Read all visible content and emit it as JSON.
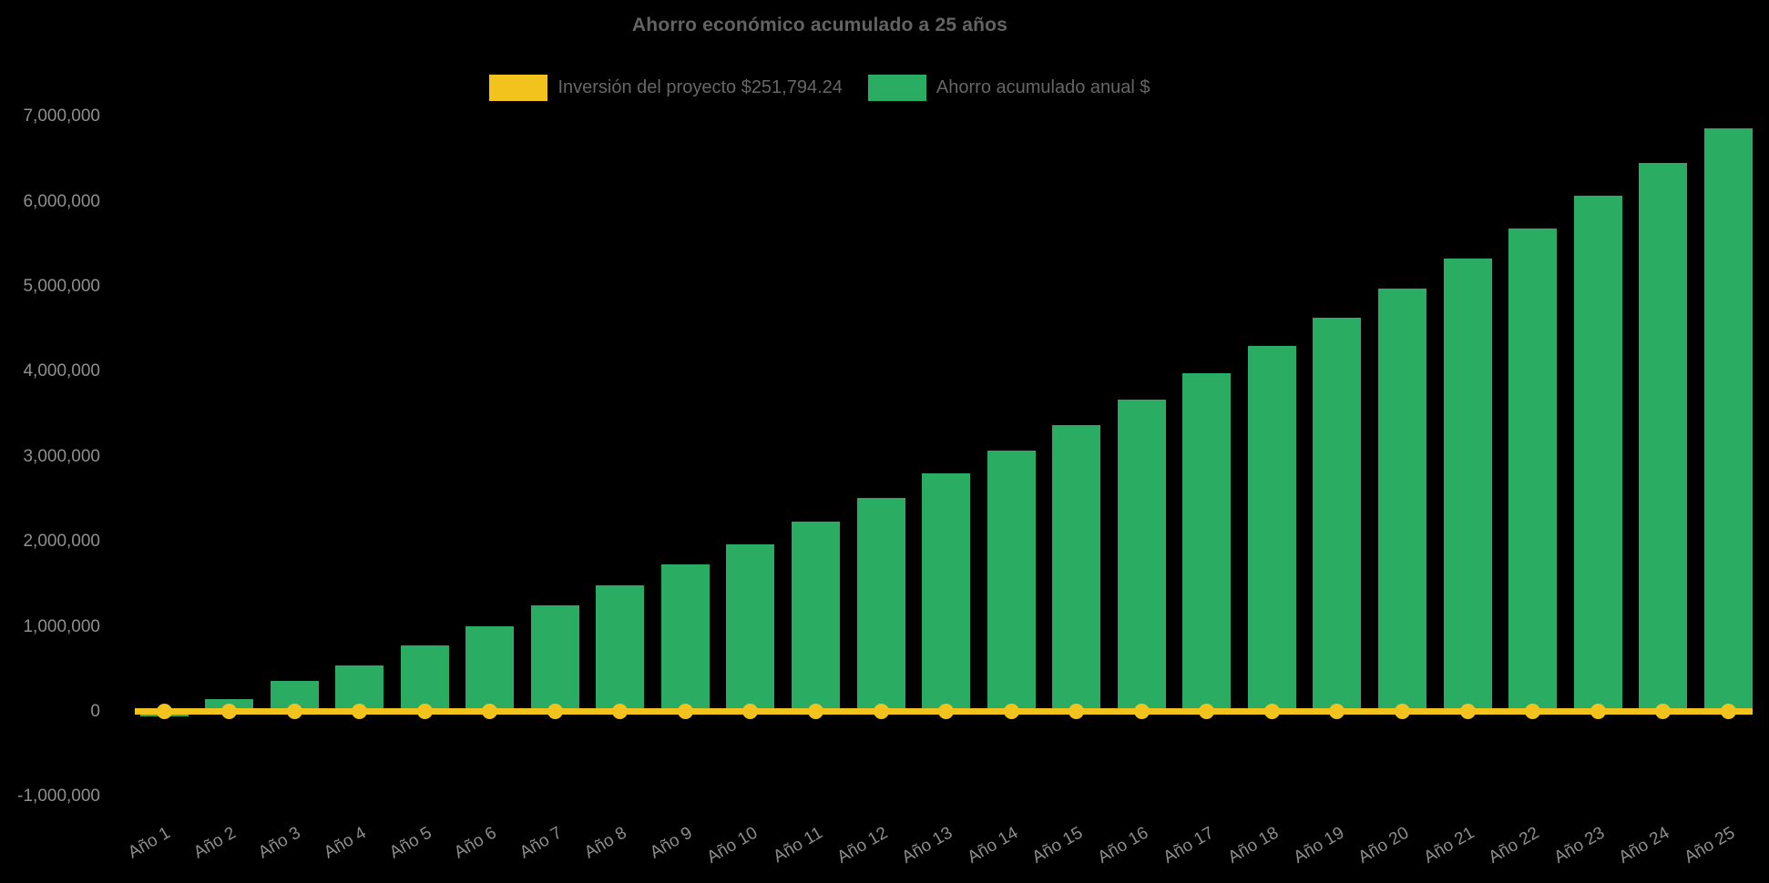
{
  "window": {
    "background": "#000000"
  },
  "chart_data": {
    "type": "bar",
    "title": "Ahorro económico acumulado a 25 años",
    "categories": [
      "Año 1",
      "Año 2",
      "Año 3",
      "Año 4",
      "Año 5",
      "Año 6",
      "Año 7",
      "Año 8",
      "Año 9",
      "Año 10",
      "Año 11",
      "Año 12",
      "Año 13",
      "Año 14",
      "Año 15",
      "Año 16",
      "Año 17",
      "Año 18",
      "Año 19",
      "Año 20",
      "Año 21",
      "Año 22",
      "Año 23",
      "Año 24",
      "Año 25"
    ],
    "series": [
      {
        "name": "Inversión del proyecto $251,794.24",
        "type": "line",
        "color": "#F2C31D",
        "labeled_value": 251794.24,
        "plotted_value": 0
      },
      {
        "name": "Ahorro acumulado anual $",
        "type": "bar",
        "color": "#2AAD62",
        "values": [
          -50000,
          150000,
          360000,
          550000,
          780000,
          1010000,
          1250000,
          1490000,
          1730000,
          1970000,
          2240000,
          2520000,
          2800000,
          3070000,
          3370000,
          3670000,
          3980000,
          4300000,
          4640000,
          4980000,
          5330000,
          5690000,
          6070000,
          6460000,
          6860000
        ]
      }
    ],
    "xlabel": "",
    "ylabel": "",
    "ylim": [
      -1000000,
      7000000
    ],
    "y_ticks": [
      7000000,
      6000000,
      5000000,
      4000000,
      3000000,
      2000000,
      1000000,
      0,
      -1000000
    ],
    "y_tick_labels": [
      "7,000,000",
      "6,000,000",
      "5,000,000",
      "4,000,000",
      "3,000,000",
      "2,000,000",
      "1,000,000",
      "0",
      "-1,000,000"
    ],
    "grid": false,
    "legend_position": "top-center",
    "axis_lines": false
  }
}
